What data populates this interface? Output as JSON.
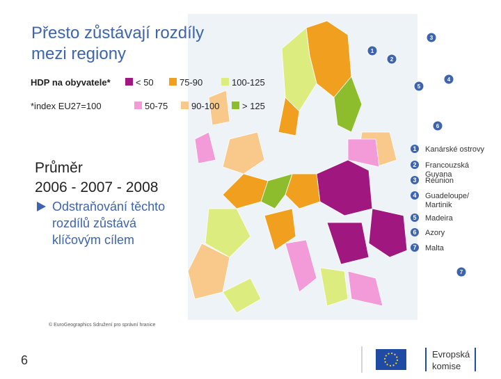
{
  "title": [
    "Přesto zůstávají rozdíly",
    "mezi regiony"
  ],
  "legend": {
    "label": "HDP na obyvatele*",
    "note": "*index EU27=100",
    "items": [
      {
        "label": "< 50",
        "color": "#a0177f"
      },
      {
        "label": "50-75",
        "color": "#f39ad9"
      },
      {
        "label": "75-90",
        "color": "#f0a01e"
      },
      {
        "label": "90-100",
        "color": "#f8c98a"
      },
      {
        "label": "100-125",
        "color": "#dcec7e"
      },
      {
        "label": "> 125",
        "color": "#8dbd2c"
      }
    ]
  },
  "headline": [
    "Průměr",
    "2006 - 2007 - 2008"
  ],
  "bullet": [
    "Odstraňování těchto",
    "rozdílů zůstává",
    "klíčovým cílem"
  ],
  "copyright": "© EuroGeographics Sdružení pro správní hranice",
  "page_number": "6",
  "insets": [
    {
      "number": "1",
      "label": [
        "Kanárské ostrovy"
      ]
    },
    {
      "number": "2",
      "label": [
        "Francouzská",
        "Guyana"
      ]
    },
    {
      "number": "3",
      "label": [
        "Réunion"
      ]
    },
    {
      "number": "4",
      "label": [
        "Guadeloupe/",
        "Martinik"
      ]
    },
    {
      "number": "5",
      "label": [
        "Madeira"
      ]
    },
    {
      "number": "6",
      "label": [
        "Azory"
      ]
    },
    {
      "number": "7",
      "label": [
        "Malta"
      ]
    }
  ],
  "logo": [
    "Evropská",
    "komise"
  ]
}
